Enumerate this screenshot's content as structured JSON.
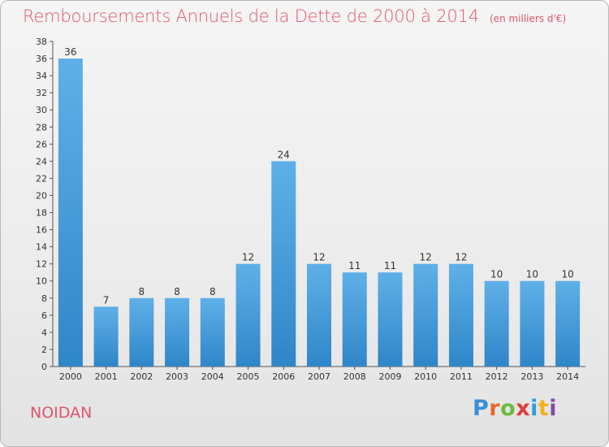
{
  "title": "Remboursements Annuels de la Dette de 2000 à 2014",
  "unit": "(en milliers d'€)",
  "commune": "NOIDAN",
  "logo": "Proxiti",
  "colors": {
    "bar": "#3c97d8",
    "bar_light": "#5caee6",
    "title": "#e0566a",
    "axis": "#555555"
  },
  "chart_data": {
    "type": "bar",
    "title": "Remboursements Annuels de la Dette de 2000 à 2014",
    "categories": [
      "2000",
      "2001",
      "2002",
      "2003",
      "2004",
      "2005",
      "2006",
      "2007",
      "2008",
      "2009",
      "2010",
      "2011",
      "2012",
      "2013",
      "2014"
    ],
    "values": [
      36,
      7,
      8,
      8,
      8,
      12,
      24,
      12,
      11,
      11,
      12,
      12,
      10,
      10,
      10
    ],
    "ylim": [
      0,
      38
    ],
    "yticks": [
      0,
      2,
      4,
      6,
      8,
      10,
      12,
      14,
      16,
      18,
      20,
      22,
      24,
      26,
      28,
      30,
      32,
      34,
      36,
      38
    ],
    "grid": false,
    "xlabel": "",
    "ylabel": ""
  }
}
